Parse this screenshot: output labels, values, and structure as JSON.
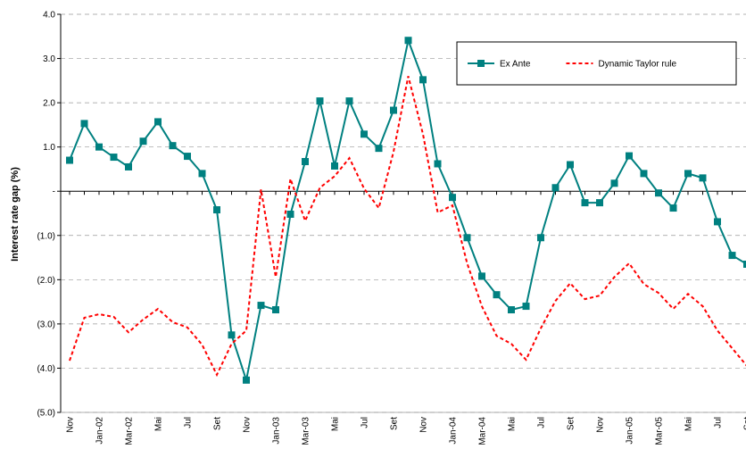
{
  "chart_data": {
    "type": "line",
    "y_label": "Interest rate gap (%)",
    "categories": [
      "Nov",
      null,
      "Jan-02",
      null,
      "Mar-02",
      null,
      "Mai",
      null,
      "Jul",
      null,
      "Set",
      null,
      "Nov",
      null,
      "Jan-03",
      null,
      "Mar-03",
      null,
      "Mai",
      null,
      "Jul",
      null,
      "Set",
      null,
      "Nov",
      null,
      "Jan-04",
      null,
      "Mar-04",
      null,
      "Mai",
      null,
      "Jul",
      null,
      "Set",
      null,
      "Nov",
      null,
      "Jan-05",
      null,
      "Mar-05",
      null,
      "Mai",
      null,
      "Jul",
      null,
      "Set"
    ],
    "series": [
      {
        "name": "Ex Ante",
        "color": "#008080",
        "marker": "square",
        "dashed": false,
        "values": [
          0.7,
          1.53,
          1.0,
          0.77,
          0.55,
          1.13,
          1.57,
          1.03,
          0.79,
          0.4,
          -0.42,
          -3.25,
          -4.27,
          -2.58,
          -2.68,
          -0.52,
          0.67,
          2.04,
          0.57,
          2.04,
          1.29,
          0.97,
          1.83,
          3.41,
          2.52,
          0.62,
          -0.14,
          -1.05,
          -1.92,
          -2.34,
          -2.68,
          -2.6,
          -1.05,
          0.08,
          0.6,
          -0.26,
          -0.26,
          0.18,
          0.8,
          0.4,
          -0.04,
          -0.38,
          0.4,
          0.3,
          -0.69,
          -1.45,
          -1.65
        ]
      },
      {
        "name": "Dynamic Taylor rule",
        "color": "#ff0000",
        "marker": "none",
        "dashed": true,
        "values": [
          -3.83,
          -2.86,
          -2.78,
          -2.84,
          -3.19,
          -2.9,
          -2.66,
          -2.96,
          -3.08,
          -3.47,
          -4.15,
          -3.45,
          -3.15,
          0.04,
          -1.94,
          0.28,
          -0.67,
          0.08,
          0.34,
          0.75,
          0.06,
          -0.38,
          0.89,
          2.6,
          1.29,
          -0.48,
          -0.32,
          -1.63,
          -2.6,
          -3.27,
          -3.45,
          -3.81,
          -3.1,
          -2.48,
          -2.08,
          -2.44,
          -2.36,
          -1.94,
          -1.63,
          -2.1,
          -2.3,
          -2.66,
          -2.32,
          -2.6,
          -3.15,
          -3.55,
          -3.95
        ]
      }
    ],
    "ylim": [
      -5,
      4
    ],
    "yticks": [
      {
        "value": -5,
        "label": "(5.0)"
      },
      {
        "value": -4,
        "label": "(4.0)"
      },
      {
        "value": -3,
        "label": "(3.0)"
      },
      {
        "value": -2,
        "label": "(2.0)"
      },
      {
        "value": -1,
        "label": "(1.0)"
      },
      {
        "value": 0,
        "label": "-"
      },
      {
        "value": 1,
        "label": "1.0"
      },
      {
        "value": 2,
        "label": "2.0"
      },
      {
        "value": 3,
        "label": "3.0"
      },
      {
        "value": 4,
        "label": "4.0"
      }
    ],
    "grid": true,
    "legend": "top-right"
  }
}
